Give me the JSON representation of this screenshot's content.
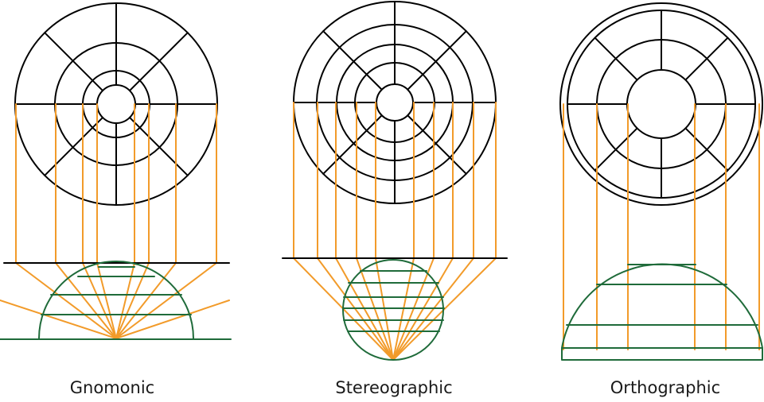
{
  "colors": {
    "grid": "#000000",
    "rays": "#f29b2a",
    "sphere": "#1f6b3a"
  },
  "panels": [
    {
      "label": "Gnomonic"
    },
    {
      "label": "Stereographic"
    },
    {
      "label": "Orthographic"
    }
  ]
}
